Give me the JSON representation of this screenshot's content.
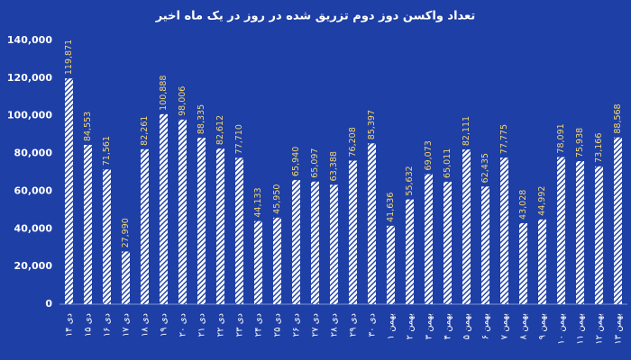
{
  "chart_data": {
    "type": "bar",
    "title": "تعداد واکسن دوز دوم تزریق شده در روز در یک ماه اخیر",
    "categories": [
      "۱۴ دی",
      "۱۵ دی",
      "۱۶ دی",
      "۱۷ دی",
      "۱۸ دی",
      "۱۹ دی",
      "۲۰ دی",
      "۲۱ دی",
      "۲۲ دی",
      "۲۳ دی",
      "۲۴ دی",
      "۲۵ دی",
      "۲۶ دی",
      "۲۷ دی",
      "۲۸ دی",
      "۲۹ دی",
      "۳۰ دی",
      "۱ بهمن",
      "۲ بهمن",
      "۳ بهمن",
      "۴ بهمن",
      "۵ بهمن",
      "۶ بهمن",
      "۷ بهمن",
      "۸ بهمن",
      "۹ بهمن",
      "۱۰ بهمن",
      "۱۱ بهمن",
      "۱۲ بهمن",
      "۱۳ بهمن"
    ],
    "values": [
      119871,
      84553,
      71561,
      27990,
      82261,
      100888,
      98006,
      88335,
      82612,
      77710,
      44133,
      45950,
      65940,
      65097,
      63388,
      76208,
      85397,
      41636,
      55632,
      69073,
      65011,
      82111,
      62435,
      77775,
      43028,
      44992,
      78091,
      75938,
      73166,
      88568
    ],
    "value_labels": [
      "119,871",
      "84,553",
      "71,561",
      "27,990",
      "82,261",
      "100,888",
      "98,006",
      "88,335",
      "82,612",
      "77,710",
      "44,133",
      "45,950",
      "65,940",
      "65,097",
      "63,388",
      "76,208",
      "85,397",
      "41,636",
      "55,632",
      "69,073",
      "65,011",
      "82,111",
      "62,435",
      "77,775",
      "43,028",
      "44,992",
      "78,091",
      "75,938",
      "73,166",
      "88,568"
    ],
    "color": "#ffffff",
    "value_label_color": "#f5d76e",
    "ylim": [
      0,
      140000
    ],
    "yticks": [
      0,
      {
        "value": 20000,
        "label": "20,000"
      },
      {
        "value": 40000,
        "label": "40,000"
      },
      {
        "value": 60000,
        "label": "60,000"
      },
      {
        "value": 80000,
        "label": "80,000"
      },
      {
        "value": 100000,
        "label": "100,000"
      },
      {
        "value": 120000,
        "label": "120,000"
      },
      {
        "value": 140000,
        "label": "140,000"
      }
    ]
  }
}
